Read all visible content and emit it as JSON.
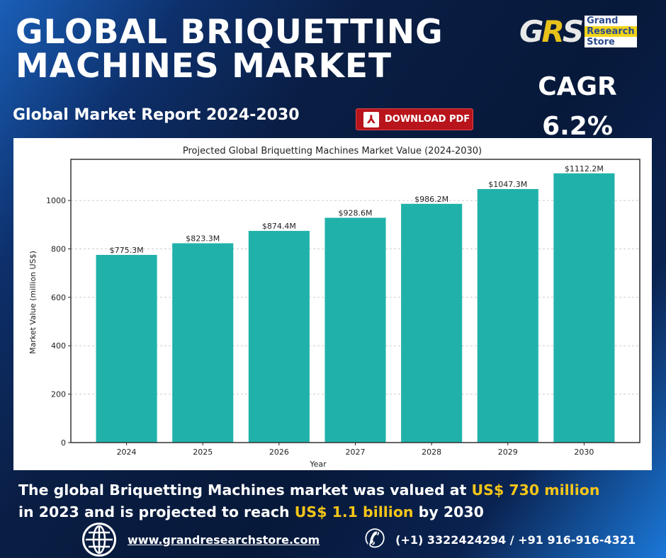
{
  "header": {
    "title_line1": "GLOBAL BRIQUETTING",
    "title_line2": "MACHINES MARKET",
    "subtitle": "Global Market Report 2024-2030",
    "download_label": "DOWNLOAD PDF"
  },
  "logo": {
    "mark": "GRS",
    "words": [
      "Grand",
      "Research",
      "Store"
    ]
  },
  "cagr": {
    "label": "CAGR",
    "value": "6.2%"
  },
  "chart_data": {
    "type": "bar",
    "title": "Projected Global Briquetting Machines Market Value (2024-2030)",
    "xlabel": "Year",
    "ylabel": "Market Value (million US$)",
    "categories": [
      "2024",
      "2025",
      "2026",
      "2027",
      "2028",
      "2029",
      "2030"
    ],
    "values": [
      775.3,
      823.3,
      874.4,
      928.6,
      986.2,
      1047.3,
      1112.2
    ],
    "data_labels": [
      "$775.3M",
      "$823.3M",
      "$874.4M",
      "$928.6M",
      "$986.2M",
      "$1047.3M",
      "$1112.2M"
    ],
    "yticks": [
      0,
      200,
      400,
      600,
      800,
      1000
    ],
    "ylim": [
      0,
      1170
    ],
    "grid": "y-dashed",
    "color": "#20b2aa"
  },
  "footer": {
    "t1": "The global Briquetting Machines market was valued at ",
    "h1": "US$ 730 million",
    "t2": "in 2023 and is projected to reach ",
    "h2": "US$ 1.1 billion",
    "t3": " by 2030",
    "website": "www.grandresearchstore.com",
    "phone": "(+1) 3322424294 / +91 916-916-4321"
  }
}
